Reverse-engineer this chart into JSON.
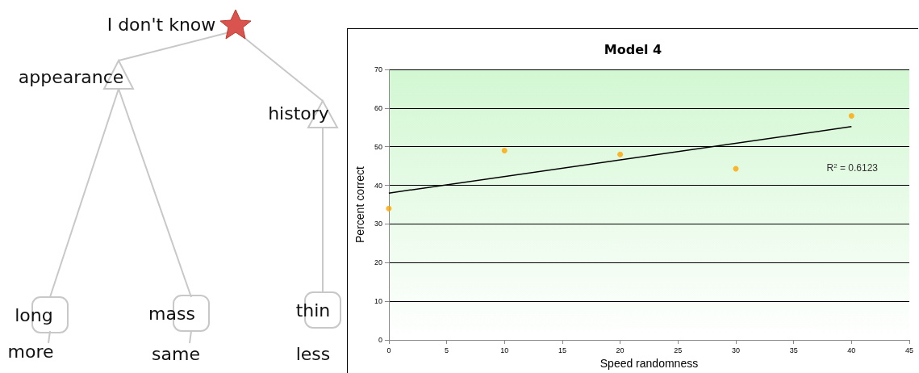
{
  "chart_data": [
    {
      "type": "other",
      "annotations": [
        "I don't know",
        "appearance",
        "history",
        "long",
        "mass",
        "thin",
        "more",
        "same",
        "less"
      ]
    },
    {
      "type": "scatter",
      "title": "Model 4",
      "xlabel": "Speed randomness",
      "ylabel": "Percent correct",
      "xlim": [
        0,
        45
      ],
      "xticks": [
        0,
        5,
        10,
        15,
        20,
        25,
        30,
        35,
        40,
        45
      ],
      "ylim": [
        0,
        70
      ],
      "yticks": [
        0,
        10,
        20,
        30,
        40,
        50,
        60,
        70
      ],
      "grid": "y",
      "series": [
        {
          "type": "scatter",
          "color": "#ffa500",
          "marker": "circle",
          "x": [
            0,
            10,
            20,
            30,
            40
          ],
          "values": [
            34,
            49,
            48,
            44.3,
            58
          ]
        },
        {
          "type": "line",
          "color": "#000000",
          "marker": "none",
          "x": [
            0,
            40
          ],
          "values": [
            38,
            55.2
          ]
        }
      ],
      "annotations": [
        "R$^{2}$ = 0.6123"
      ]
    }
  ]
}
